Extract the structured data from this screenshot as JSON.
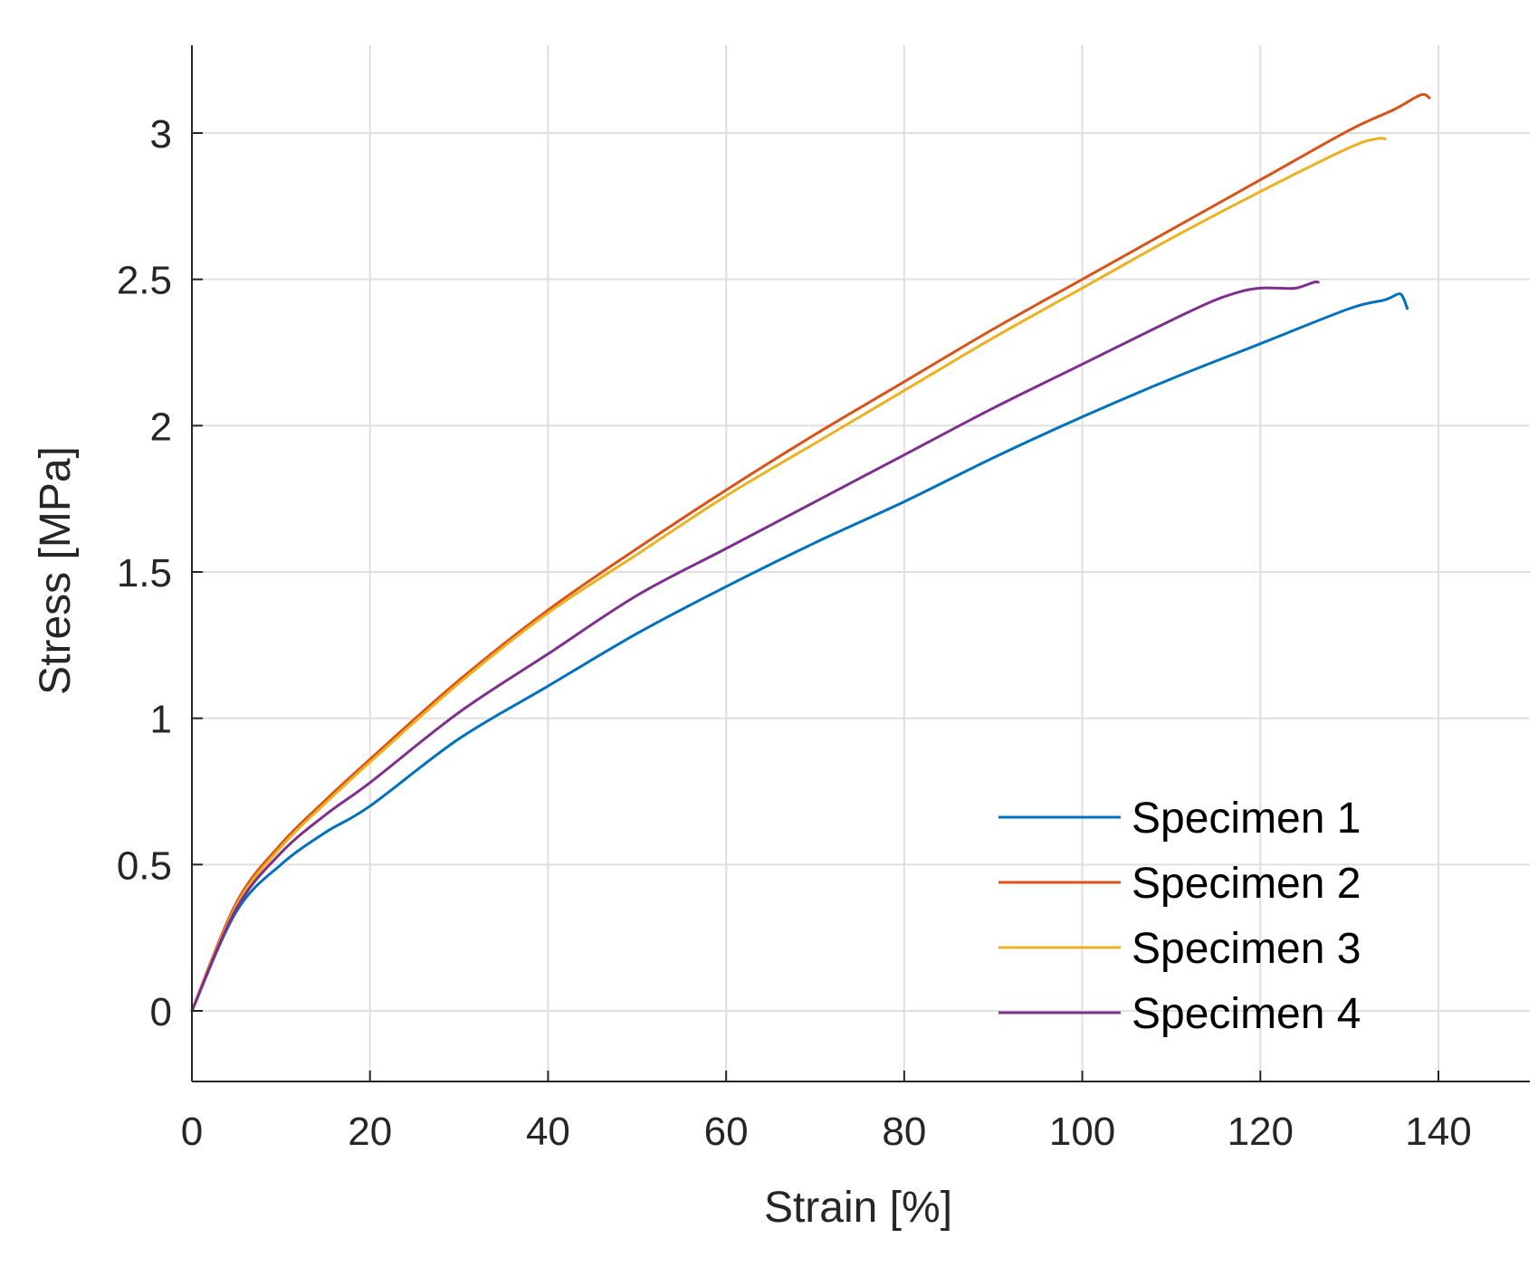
{
  "chart_data": {
    "type": "line",
    "title": "",
    "xlabel": "Strain [%]",
    "ylabel": "Stress [MPa]",
    "xlim": [
      0,
      150
    ],
    "ylim": [
      -0.25,
      3.3
    ],
    "xticks": [
      0,
      20,
      40,
      60,
      80,
      100,
      120,
      140
    ],
    "yticks": [
      0,
      0.5,
      1,
      1.5,
      2,
      2.5,
      3
    ],
    "xtick_labels": [
      "0",
      "20",
      "40",
      "60",
      "80",
      "100",
      "120",
      "140"
    ],
    "ytick_labels": [
      "0",
      "0.5",
      "1",
      "1.5",
      "2",
      "2.5",
      "3"
    ],
    "grid": true,
    "legend_position": "bottom-right",
    "series": [
      {
        "name": "Specimen 1",
        "color": "#0072BD",
        "x": [
          0,
          5,
          10,
          15,
          20,
          30,
          40,
          50,
          60,
          70,
          80,
          90,
          100,
          110,
          120,
          130,
          134,
          135.5,
          136,
          136.5
        ],
        "y": [
          0,
          0.34,
          0.5,
          0.61,
          0.7,
          0.93,
          1.11,
          1.29,
          1.45,
          1.6,
          1.74,
          1.89,
          2.03,
          2.16,
          2.28,
          2.4,
          2.43,
          2.45,
          2.44,
          2.4
        ]
      },
      {
        "name": "Specimen 2",
        "color": "#D95319",
        "x": [
          0,
          5,
          10,
          15,
          20,
          30,
          40,
          50,
          60,
          70,
          80,
          90,
          100,
          110,
          120,
          130,
          135,
          138,
          139
        ],
        "y": [
          0,
          0.37,
          0.57,
          0.72,
          0.86,
          1.13,
          1.37,
          1.58,
          1.78,
          1.97,
          2.15,
          2.33,
          2.5,
          2.67,
          2.84,
          3.01,
          3.08,
          3.13,
          3.12
        ]
      },
      {
        "name": "Specimen 3",
        "color": "#EDB120",
        "x": [
          0,
          5,
          10,
          15,
          20,
          30,
          40,
          50,
          60,
          70,
          80,
          90,
          100,
          110,
          120,
          130,
          133,
          134
        ],
        "y": [
          0,
          0.36,
          0.56,
          0.71,
          0.85,
          1.12,
          1.36,
          1.56,
          1.76,
          1.94,
          2.12,
          2.3,
          2.47,
          2.64,
          2.8,
          2.95,
          2.98,
          2.98
        ]
      },
      {
        "name": "Specimen 4",
        "color": "#7E2F8E",
        "x": [
          0,
          5,
          10,
          15,
          20,
          30,
          40,
          50,
          60,
          70,
          80,
          90,
          100,
          110,
          115,
          118,
          120,
          122,
          124,
          126,
          126.5
        ],
        "y": [
          0,
          0.35,
          0.54,
          0.67,
          0.78,
          1.02,
          1.22,
          1.42,
          1.58,
          1.74,
          1.9,
          2.06,
          2.21,
          2.36,
          2.43,
          2.46,
          2.47,
          2.47,
          2.47,
          2.49,
          2.49
        ]
      }
    ]
  }
}
